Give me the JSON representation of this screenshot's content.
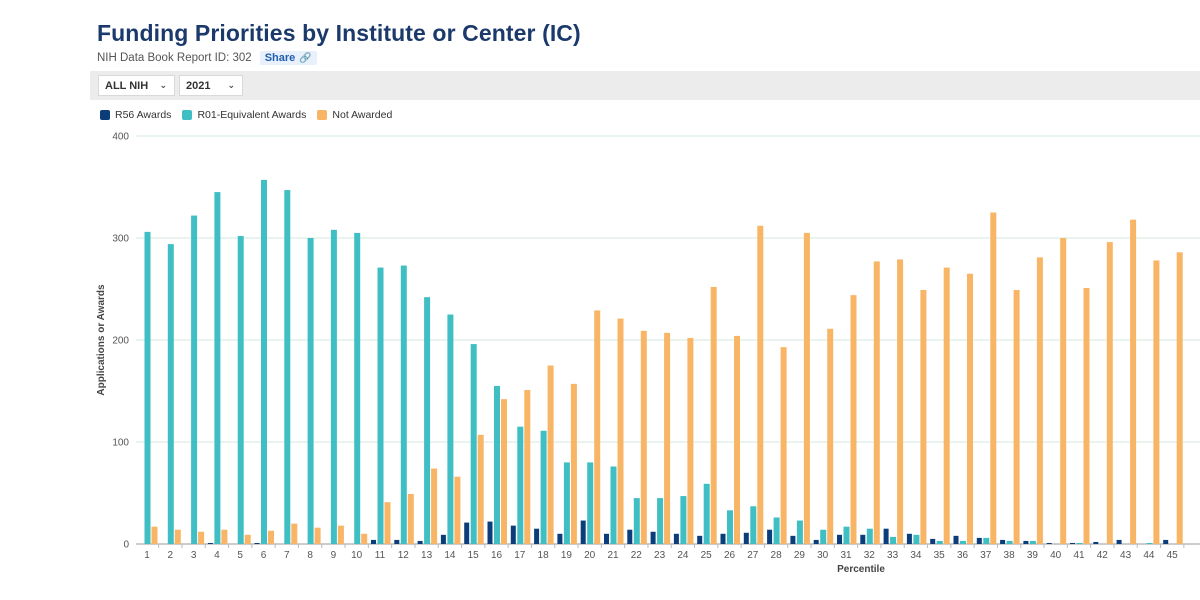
{
  "header": {
    "title": "Funding Priorities by Institute or Center (IC)",
    "report_id": "NIH Data Book Report ID: 302",
    "share_label": "Share"
  },
  "filters": {
    "ic": "ALL NIH",
    "year": "2021"
  },
  "colors": {
    "r56": "#0b3d7a",
    "r01": "#3fbfc3",
    "not_awarded": "#f9b566",
    "grid": "#d4e8de"
  },
  "chart_data": {
    "type": "bar",
    "xlabel": "Percentile",
    "ylabel": "Applications or Awards",
    "ylim": [
      0,
      400
    ],
    "yticks": [
      0,
      100,
      200,
      300,
      400
    ],
    "grid": true,
    "legend_position": "top-left",
    "categories": [
      "1",
      "2",
      "3",
      "4",
      "5",
      "6",
      "7",
      "8",
      "9",
      "10",
      "11",
      "12",
      "13",
      "14",
      "15",
      "16",
      "17",
      "18",
      "19",
      "20",
      "21",
      "22",
      "23",
      "24",
      "25",
      "26",
      "27",
      "28",
      "29",
      "30",
      "31",
      "32",
      "33",
      "34",
      "35",
      "36",
      "37",
      "38",
      "39",
      "40",
      "41",
      "42",
      "43",
      "44",
      "45"
    ],
    "series": [
      {
        "name": "R56 Awards",
        "color": "#0b3d7a",
        "values": [
          0,
          0,
          0,
          1,
          0,
          1,
          0,
          0,
          0,
          0,
          4,
          4,
          3,
          9,
          21,
          22,
          18,
          15,
          10,
          23,
          10,
          14,
          12,
          10,
          8,
          10,
          11,
          14,
          8,
          4,
          9,
          9,
          15,
          10,
          5,
          8,
          6,
          4,
          3,
          1,
          1,
          2,
          4,
          0,
          4
        ]
      },
      {
        "name": "R01-Equivalent Awards",
        "color": "#3fbfc3",
        "values": [
          306,
          294,
          322,
          345,
          302,
          357,
          347,
          300,
          308,
          305,
          271,
          273,
          242,
          225,
          196,
          155,
          115,
          111,
          80,
          80,
          76,
          45,
          45,
          47,
          59,
          33,
          37,
          26,
          23,
          14,
          17,
          15,
          7,
          9,
          3,
          3,
          6,
          3,
          3,
          0,
          1,
          0,
          0,
          1,
          0
        ]
      },
      {
        "name": "Not Awarded",
        "color": "#f9b566",
        "values": [
          17,
          14,
          12,
          14,
          9,
          13,
          20,
          16,
          18,
          10,
          41,
          49,
          74,
          66,
          107,
          142,
          151,
          175,
          157,
          229,
          221,
          209,
          207,
          202,
          252,
          204,
          312,
          193,
          305,
          211,
          244,
          277,
          279,
          249,
          271,
          265,
          325,
          249,
          281,
          300,
          251,
          296,
          318,
          278,
          286
        ]
      }
    ]
  }
}
